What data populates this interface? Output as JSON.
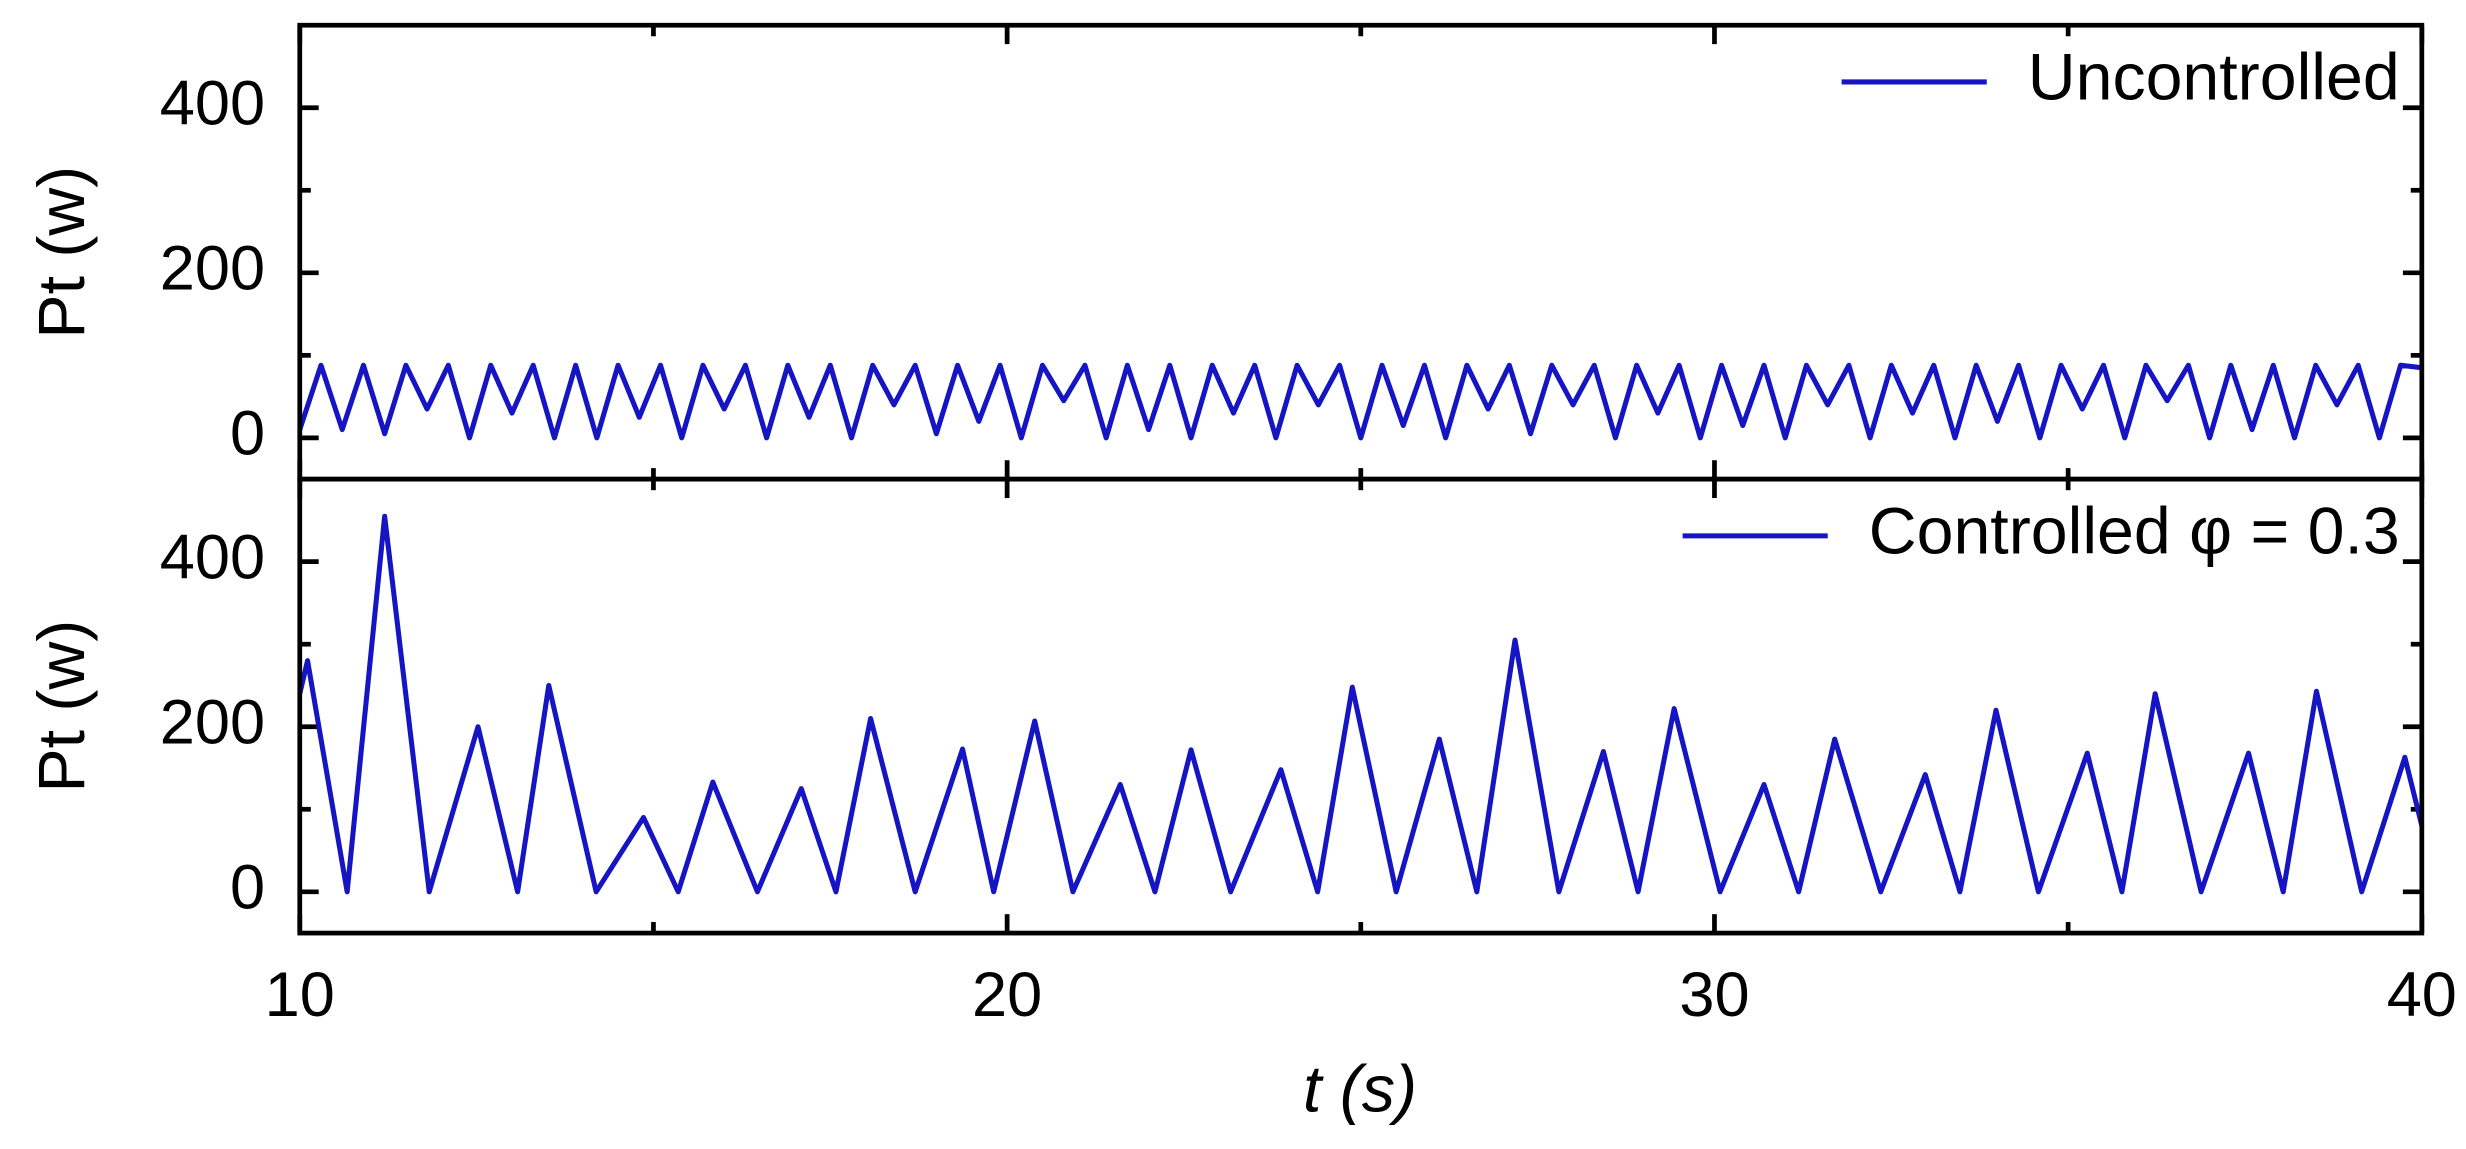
{
  "chart_data": [
    {
      "type": "line",
      "ylabel": "Pt (w)",
      "xlim": [
        10,
        40
      ],
      "xticks": [
        10,
        20,
        30,
        40
      ],
      "xminorticks": [
        15,
        25,
        35
      ],
      "ylim": [
        -50,
        500
      ],
      "yticks": [
        0,
        200,
        400
      ],
      "yminorticks": [
        100,
        300
      ],
      "legend": "upper right",
      "x": [
        10,
        10.3,
        10.6,
        10.9,
        11.2,
        11.5,
        11.8,
        12.1,
        12.4,
        12.7,
        13,
        13.3,
        13.6,
        13.9,
        14.2,
        14.5,
        14.8,
        15.1,
        15.4,
        15.7,
        16,
        16.3,
        16.6,
        16.9,
        17.2,
        17.5,
        17.8,
        18.1,
        18.4,
        18.7,
        19,
        19.3,
        19.6,
        19.9,
        20.2,
        20.5,
        20.8,
        21.1,
        21.4,
        21.7,
        22,
        22.3,
        22.6,
        22.9,
        23.2,
        23.5,
        23.8,
        24.1,
        24.4,
        24.7,
        25,
        25.3,
        25.6,
        25.9,
        26.2,
        26.5,
        26.8,
        27.1,
        27.4,
        27.7,
        28,
        28.3,
        28.6,
        28.9,
        29.2,
        29.5,
        29.8,
        30.1,
        30.4,
        30.7,
        31,
        31.3,
        31.6,
        31.9,
        32.2,
        32.5,
        32.8,
        33.1,
        33.4,
        33.7,
        34,
        34.3,
        34.6,
        34.9,
        35.2,
        35.5,
        35.8,
        36.1,
        36.4,
        36.7,
        37,
        37.3,
        37.6,
        37.9,
        38.2,
        38.5,
        38.8,
        39.1,
        39.4,
        39.7,
        40
      ],
      "series": [
        {
          "name": "Uncontrolled",
          "color": "#1515c4",
          "values": [
            10,
            88,
            10,
            88,
            5,
            88,
            35,
            88,
            0,
            88,
            30,
            88,
            0,
            88,
            0,
            88,
            25,
            88,
            0,
            88,
            35,
            88,
            0,
            88,
            25,
            88,
            0,
            88,
            40,
            88,
            5,
            88,
            20,
            88,
            0,
            88,
            45,
            88,
            0,
            88,
            10,
            88,
            0,
            88,
            30,
            88,
            0,
            88,
            40,
            88,
            0,
            88,
            15,
            88,
            0,
            88,
            35,
            88,
            5,
            88,
            40,
            88,
            0,
            88,
            30,
            88,
            0,
            88,
            15,
            88,
            0,
            88,
            40,
            88,
            0,
            88,
            30,
            88,
            0,
            88,
            20,
            88,
            0,
            88,
            35,
            88,
            0,
            88,
            45,
            88,
            0,
            88,
            10,
            88,
            0,
            88,
            40,
            88,
            0,
            88,
            85
          ]
        }
      ]
    },
    {
      "type": "line",
      "ylabel": "Pt (w)",
      "xlabel": "t (s)",
      "xlim": [
        10,
        40
      ],
      "xticks": [
        10,
        20,
        30,
        40
      ],
      "xminorticks": [
        15,
        25,
        35
      ],
      "ylim": [
        -50,
        500
      ],
      "yticks": [
        0,
        200,
        400
      ],
      "yminorticks": [
        100,
        300
      ],
      "legend": "upper right",
      "x": [
        10,
        10.11,
        10.67,
        11.2,
        11.83,
        12.52,
        13.08,
        13.52,
        14.19,
        14.86,
        15.35,
        15.84,
        16.47,
        17.09,
        17.58,
        18.07,
        18.7,
        19.37,
        19.81,
        20.39,
        20.93,
        21.6,
        22.09,
        22.6,
        23.16,
        23.87,
        24.39,
        24.88,
        25.5,
        26.11,
        26.64,
        27.18,
        27.8,
        28.43,
        28.92,
        29.43,
        30.08,
        30.7,
        31.19,
        31.7,
        32.35,
        32.98,
        33.47,
        33.98,
        34.58,
        35.27,
        35.76,
        36.23,
        36.88,
        37.55,
        38.04,
        38.51,
        39.15,
        39.76,
        40
      ],
      "series": [
        {
          "name": "Controlled φ = 0.3",
          "color": "#1515c4",
          "values": [
            240,
            280,
            0,
            455,
            0,
            200,
            0,
            250,
            0,
            90,
            0,
            133,
            0,
            125,
            0,
            210,
            0,
            173,
            0,
            207,
            0,
            130,
            0,
            172,
            0,
            148,
            0,
            248,
            0,
            185,
            0,
            305,
            0,
            170,
            0,
            222,
            0,
            130,
            0,
            185,
            0,
            142,
            0,
            220,
            0,
            168,
            0,
            240,
            0,
            168,
            0,
            243,
            0,
            163,
            80
          ]
        }
      ]
    }
  ]
}
